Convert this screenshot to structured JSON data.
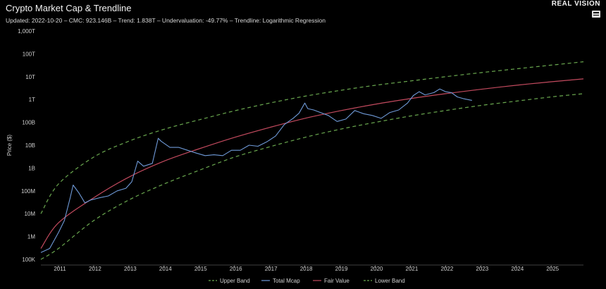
{
  "header": {
    "title": "Crypto Market Cap & Trendline",
    "subtitle": "Updated: 2022-10-20 – CMC: 923.146B – Trend: 1.838T – Undervaluation: -49.77% – Trendline: Logarithmic Regression",
    "brand": "REAL VISION"
  },
  "colors": {
    "upper_band": "#6aa84f",
    "total_mcap": "#6f9ad8",
    "fair_value": "#c24a5e",
    "lower_band": "#6aa84f"
  },
  "chart_data": {
    "type": "line",
    "title": "Crypto Market Cap & Trendline",
    "ylabel": "Price ($)",
    "xlabel": "",
    "y_scale": "log",
    "ylim": [
      100000,
      1000000000000000
    ],
    "xlim": [
      "2010-07",
      "2025-12"
    ],
    "grid": false,
    "legend_position": "bottom",
    "y_ticks": [
      "100K",
      "1M",
      "10M",
      "100M",
      "1B",
      "10B",
      "100B",
      "1T",
      "10T",
      "100T",
      "1,000T"
    ],
    "y_tick_values": [
      100000,
      1000000,
      10000000,
      100000000,
      1000000000,
      10000000000,
      100000000000,
      1000000000000,
      10000000000000,
      100000000000000,
      1000000000000000
    ],
    "x_ticks": [
      "2011",
      "2012",
      "2013",
      "2014",
      "2015",
      "2016",
      "2017",
      "2018",
      "2019",
      "2020",
      "2021",
      "2022",
      "2023",
      "2024",
      "2025"
    ],
    "series": [
      {
        "name": "Upper Band",
        "style": "dashed",
        "x": [
          "2010-07",
          "2011-01",
          "2012-01",
          "2013-01",
          "2014-01",
          "2015-01",
          "2016-01",
          "2017-01",
          "2018-01",
          "2019-01",
          "2020-01",
          "2021-01",
          "2022-01",
          "2023-01",
          "2024-01",
          "2025-01",
          "2025-12"
        ],
        "values": [
          10000000.0,
          200000000.0,
          3000000000.0,
          15000000000.0,
          50000000000.0,
          130000000000.0,
          320000000000.0,
          700000000000.0,
          1400000000000.0,
          2500000000000.0,
          4200000000000.0,
          6500000000000.0,
          10000000000000.0,
          15000000000000.0,
          22000000000000.0,
          32000000000000.0,
          45000000000000.0
        ]
      },
      {
        "name": "Total Mcap",
        "style": "solid",
        "x": [
          "2010-07",
          "2010-10",
          "2011-01",
          "2011-03",
          "2011-05",
          "2011-06",
          "2011-08",
          "2011-10",
          "2011-12",
          "2012-03",
          "2012-06",
          "2012-09",
          "2012-12",
          "2013-02",
          "2013-04",
          "2013-06",
          "2013-09",
          "2013-11",
          "2013-12",
          "2014-03",
          "2014-06",
          "2014-09",
          "2014-12",
          "2015-03",
          "2015-06",
          "2015-09",
          "2015-12",
          "2016-03",
          "2016-06",
          "2016-09",
          "2016-12",
          "2017-03",
          "2017-06",
          "2017-09",
          "2017-11",
          "2018-01",
          "2018-02",
          "2018-04",
          "2018-06",
          "2018-09",
          "2018-12",
          "2019-03",
          "2019-06",
          "2019-09",
          "2019-12",
          "2020-03",
          "2020-06",
          "2020-09",
          "2020-12",
          "2021-02",
          "2021-04",
          "2021-06",
          "2021-09",
          "2021-11",
          "2022-01",
          "2022-03",
          "2022-05",
          "2022-07",
          "2022-10"
        ],
        "values": [
          200000.0,
          300000.0,
          1500000.0,
          5000000.0,
          50000000.0,
          180000000.0,
          80000000.0,
          30000000.0,
          40000000.0,
          50000000.0,
          60000000.0,
          100000000.0,
          130000000.0,
          250000000.0,
          2000000000.0,
          1200000000.0,
          1600000000.0,
          20000000000.0,
          15000000000.0,
          8000000000.0,
          8000000000.0,
          6000000000.0,
          4500000000.0,
          3500000000.0,
          3800000000.0,
          3500000000.0,
          6000000000.0,
          6000000000.0,
          10000000000.0,
          9000000000.0,
          14000000000.0,
          25000000000.0,
          80000000000.0,
          150000000000.0,
          250000000000.0,
          700000000000.0,
          400000000000.0,
          350000000000.0,
          280000000000.0,
          200000000000.0,
          110000000000.0,
          140000000000.0,
          330000000000.0,
          240000000000.0,
          200000000000.0,
          150000000000.0,
          270000000000.0,
          350000000000.0,
          700000000000.0,
          1500000000000.0,
          2200000000000.0,
          1600000000000.0,
          2000000000000.0,
          2900000000000.0,
          2200000000000.0,
          2000000000000.0,
          1300000000000.0,
          1100000000000.0,
          920000000000.0
        ]
      },
      {
        "name": "Fair Value",
        "style": "solid",
        "x": [
          "2010-07",
          "2011-01",
          "2012-01",
          "2013-01",
          "2014-01",
          "2015-01",
          "2016-01",
          "2017-01",
          "2018-01",
          "2019-01",
          "2020-01",
          "2021-01",
          "2022-01",
          "2023-01",
          "2024-01",
          "2025-01",
          "2025-12"
        ],
        "values": [
          300000.0,
          4000000.0,
          50000000.0,
          400000000.0,
          2000000000.0,
          7000000000.0,
          22000000000.0,
          60000000000.0,
          150000000000.0,
          320000000000.0,
          620000000000.0,
          1100000000000.0,
          1800000000000.0,
          2800000000000.0,
          4200000000000.0,
          6000000000000.0,
          8000000000000.0
        ]
      },
      {
        "name": "Lower Band",
        "style": "dashed",
        "x": [
          "2010-07",
          "2011-01",
          "2012-01",
          "2013-01",
          "2014-01",
          "2015-01",
          "2016-01",
          "2017-01",
          "2018-01",
          "2019-01",
          "2020-01",
          "2021-01",
          "2022-01",
          "2023-01",
          "2024-01",
          "2025-01",
          "2025-12"
        ],
        "values": [
          100000.0,
          300000.0,
          5000000.0,
          40000000.0,
          200000000.0,
          800000000.0,
          3000000000.0,
          8500000000.0,
          22000000000.0,
          50000000000.0,
          100000000000.0,
          190000000000.0,
          330000000000.0,
          550000000000.0,
          850000000000.0,
          1300000000000.0,
          1800000000000.0
        ]
      }
    ]
  }
}
